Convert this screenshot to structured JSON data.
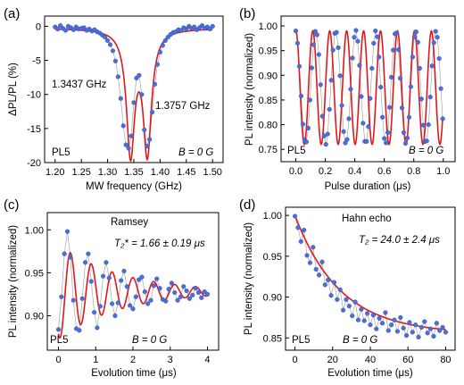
{
  "chart_data": [
    {
      "type": "scatter",
      "panel_label": "(a)",
      "xlabel": "MW frequency (GHz)",
      "ylabel": "ΔPL/PL  (%)",
      "xlim": [
        1.18,
        1.52
      ],
      "ylim": [
        -20,
        1.5
      ],
      "xticks": [
        "1.20",
        "1.25",
        "1.30",
        "1.35",
        "1.40",
        "1.45",
        "1.50"
      ],
      "yticks": [
        "0",
        "-5",
        "-10",
        "-15",
        "-20"
      ],
      "fit": {
        "model": "double_lorentzian",
        "centers": [
          1.3437,
          1.3757
        ],
        "depths": [
          18.0,
          17.8
        ],
        "hwhm": [
          0.0095,
          0.0095
        ],
        "baseline": -0.3
      },
      "points_x": [
        1.2,
        1.205,
        1.21,
        1.215,
        1.22,
        1.225,
        1.23,
        1.235,
        1.24,
        1.245,
        1.25,
        1.255,
        1.26,
        1.265,
        1.27,
        1.275,
        1.28,
        1.285,
        1.29,
        1.295,
        1.3,
        1.305,
        1.31,
        1.315,
        1.32,
        1.325,
        1.33,
        1.335,
        1.34,
        1.345,
        1.35,
        1.355,
        1.36,
        1.365,
        1.37,
        1.375,
        1.38,
        1.385,
        1.39,
        1.395,
        1.4,
        1.405,
        1.41,
        1.415,
        1.42,
        1.425,
        1.43,
        1.435,
        1.44,
        1.445,
        1.45,
        1.455,
        1.46,
        1.465,
        1.47,
        1.475,
        1.48,
        1.485,
        1.49,
        1.495,
        1.5
      ],
      "points_y": [
        -0.1,
        -0.4,
        0.1,
        -0.3,
        -0.6,
        0.0,
        -0.2,
        -0.5,
        -0.1,
        -0.4,
        -0.3,
        -0.2,
        -0.6,
        -0.4,
        -0.7,
        -0.5,
        -0.8,
        -1.0,
        -1.3,
        -1.6,
        -2.1,
        -2.7,
        -3.6,
        -5.1,
        -7.4,
        -10.6,
        -14.6,
        -17.4,
        -17.9,
        -16.1,
        -11.2,
        -7.6,
        -7.2,
        -10.0,
        -15.2,
        -17.6,
        -16.6,
        -12.6,
        -8.5,
        -5.6,
        -3.8,
        -2.8,
        -2.1,
        -1.6,
        -1.2,
        -0.9,
        -0.8,
        -0.5,
        -0.6,
        -0.2,
        -0.4,
        0.0,
        -0.3,
        -0.1,
        -0.5,
        -0.2,
        0.1,
        -0.3,
        -0.1,
        -0.4,
        0.0
      ],
      "annotations": {
        "left_peak": "1.3437 GHz",
        "right_peak": "1.3757 GHz",
        "sample": "PL5",
        "field": "B = 0 G"
      }
    },
    {
      "type": "scatter",
      "panel_label": "(b)",
      "xlabel": "Pulse duration (μs)",
      "ylabel": "PL intensity (normalized)",
      "xlim": [
        -0.1,
        1.08
      ],
      "ylim": [
        0.725,
        1.02
      ],
      "xticks": [
        "0.0",
        "0.2",
        "0.4",
        "0.6",
        "0.8",
        "1.0"
      ],
      "yticks": [
        "0.75",
        "0.80",
        "0.85",
        "0.90",
        "0.95",
        "1.00"
      ],
      "fit": {
        "model": "cosine",
        "offset": 0.875,
        "amplitude": 0.115,
        "frequency_MHz": 8.7,
        "decay": "very slow"
      },
      "points_x": [
        0.0,
        0.012,
        0.024,
        0.036,
        0.048,
        0.06,
        0.072,
        0.084,
        0.096,
        0.108,
        0.12,
        0.132,
        0.144,
        0.156,
        0.168,
        0.18,
        0.192,
        0.204,
        0.216,
        0.228,
        0.24,
        0.252,
        0.264,
        0.276,
        0.288,
        0.3,
        0.312,
        0.324,
        0.336,
        0.348,
        0.36,
        0.372,
        0.384,
        0.396,
        0.408,
        0.42,
        0.432,
        0.444,
        0.456,
        0.468,
        0.48,
        0.492,
        0.504,
        0.516,
        0.528,
        0.54,
        0.552,
        0.564,
        0.576,
        0.588,
        0.6,
        0.612,
        0.624,
        0.636,
        0.648,
        0.66,
        0.672,
        0.684,
        0.696,
        0.708,
        0.72,
        0.732,
        0.744,
        0.756,
        0.768,
        0.78,
        0.792,
        0.804,
        0.816,
        0.828,
        0.84,
        0.852,
        0.864,
        0.876,
        0.888,
        0.9,
        0.912,
        0.924,
        0.936,
        0.948,
        0.96,
        0.972,
        0.984,
        0.996
      ],
      "points_y": [
        0.99,
        0.965,
        0.918,
        0.858,
        0.801,
        0.769,
        0.765,
        0.793,
        0.85,
        0.915,
        0.962,
        0.989,
        0.982,
        0.942,
        0.881,
        0.817,
        0.777,
        0.76,
        0.781,
        0.831,
        0.89,
        0.951,
        0.985,
        0.987,
        0.956,
        0.899,
        0.839,
        0.786,
        0.763,
        0.77,
        0.812,
        0.872,
        0.935,
        0.977,
        0.991,
        0.969,
        0.92,
        0.857,
        0.803,
        0.766,
        0.766,
        0.796,
        0.853,
        0.914,
        0.965,
        0.99,
        0.978,
        0.937,
        0.876,
        0.815,
        0.772,
        0.763,
        0.784,
        0.835,
        0.896,
        0.951,
        0.984,
        0.986,
        0.952,
        0.894,
        0.834,
        0.784,
        0.762,
        0.773,
        0.815,
        0.877,
        0.937,
        0.978,
        0.988,
        0.967,
        0.914,
        0.852,
        0.799,
        0.766,
        0.767,
        0.8,
        0.856,
        0.919,
        0.966,
        0.989,
        0.977,
        0.934,
        0.873,
        0.812
      ],
      "annotations": {
        "sample": "PL5",
        "field": "B = 0 G"
      }
    },
    {
      "type": "scatter",
      "panel_label": "(c)",
      "xlabel": "Evolution time (μs)",
      "ylabel": "PL intensity (normalized)",
      "xlim": [
        -0.3,
        4.3
      ],
      "ylim": [
        0.86,
        1.02
      ],
      "xticks": [
        "0",
        "1",
        "2",
        "3",
        "4"
      ],
      "yticks": [
        "0.90",
        "0.95",
        "1.00"
      ],
      "fit": {
        "model": "damped_cosine",
        "offset": 0.928,
        "amplitude": 0.055,
        "period_us": 0.56,
        "T2star_us": 1.66
      },
      "points_x": [
        0.0,
        0.08,
        0.16,
        0.24,
        0.32,
        0.4,
        0.48,
        0.56,
        0.64,
        0.72,
        0.8,
        0.88,
        0.96,
        1.04,
        1.12,
        1.2,
        1.28,
        1.36,
        1.44,
        1.52,
        1.6,
        1.68,
        1.76,
        1.84,
        1.92,
        2.0,
        2.08,
        2.16,
        2.24,
        2.32,
        2.4,
        2.48,
        2.56,
        2.64,
        2.72,
        2.8,
        2.88,
        2.96,
        3.04,
        3.12,
        3.2,
        3.28,
        3.36,
        3.44,
        3.52,
        3.6,
        3.68,
        3.76,
        3.84,
        3.92,
        4.0
      ],
      "points_y": [
        0.884,
        0.922,
        0.972,
        0.998,
        0.968,
        0.918,
        0.885,
        0.883,
        0.92,
        0.962,
        0.972,
        0.94,
        0.904,
        0.886,
        0.911,
        0.946,
        0.962,
        0.944,
        0.914,
        0.9,
        0.915,
        0.941,
        0.952,
        0.934,
        0.912,
        0.908,
        0.922,
        0.942,
        0.945,
        0.928,
        0.914,
        0.918,
        0.935,
        0.943,
        0.932,
        0.919,
        0.917,
        0.931,
        0.938,
        0.927,
        0.918,
        0.922,
        0.934,
        0.929,
        0.92,
        0.924,
        0.932,
        0.927,
        0.921,
        0.928,
        0.925
      ],
      "annotations": {
        "title": "Ramsey",
        "t2star": "T₂* = 1.66 ± 0.19 μs",
        "sample": "PL5",
        "field": "B = 0 G"
      }
    },
    {
      "type": "scatter",
      "panel_label": "(d)",
      "xlabel": "Evolution time (μs)",
      "ylabel": "PL intensity (normalized)",
      "xlim": [
        -5,
        85
      ],
      "ylim": [
        0.835,
        1.01
      ],
      "xticks": [
        "0",
        "20",
        "40",
        "60",
        "80"
      ],
      "yticks": [
        "0.85",
        "0.90",
        "0.95",
        "1.00"
      ],
      "fit": {
        "model": "exponential_decay",
        "offset": 0.855,
        "amplitude": 0.145,
        "T2_us": 24.0
      },
      "points_x": [
        0.0,
        1.6,
        3.2,
        4.8,
        6.4,
        8.0,
        9.6,
        11.2,
        12.8,
        14.4,
        16.0,
        17.6,
        19.2,
        20.8,
        22.4,
        24.0,
        25.6,
        27.2,
        28.8,
        30.4,
        32.0,
        33.6,
        35.2,
        36.8,
        38.4,
        40.0,
        41.6,
        43.2,
        44.8,
        46.4,
        48.0,
        49.6,
        51.2,
        52.8,
        54.4,
        56.0,
        57.6,
        59.2,
        60.8,
        62.4,
        64.0,
        65.6,
        67.2,
        68.8,
        70.4,
        72.0,
        73.6,
        75.2,
        76.8,
        78.4,
        80.0
      ],
      "points_y": [
        0.999,
        0.985,
        0.968,
        0.982,
        0.951,
        0.942,
        0.961,
        0.934,
        0.927,
        0.943,
        0.915,
        0.921,
        0.902,
        0.918,
        0.897,
        0.909,
        0.884,
        0.897,
        0.889,
        0.877,
        0.894,
        0.872,
        0.885,
        0.871,
        0.88,
        0.866,
        0.878,
        0.861,
        0.874,
        0.868,
        0.881,
        0.859,
        0.866,
        0.872,
        0.858,
        0.875,
        0.862,
        0.853,
        0.869,
        0.857,
        0.866,
        0.851,
        0.863,
        0.87,
        0.856,
        0.861,
        0.852,
        0.868,
        0.859,
        0.863,
        0.857
      ],
      "annotations": {
        "title": "Hahn echo",
        "t2": "T₂ = 24.0 ± 2.4 μs",
        "sample": "PL5",
        "field": "B = 0 G"
      }
    }
  ],
  "colors": {
    "points": "#4d6ed6",
    "fit": "#e0181c",
    "axis": "#000000"
  }
}
